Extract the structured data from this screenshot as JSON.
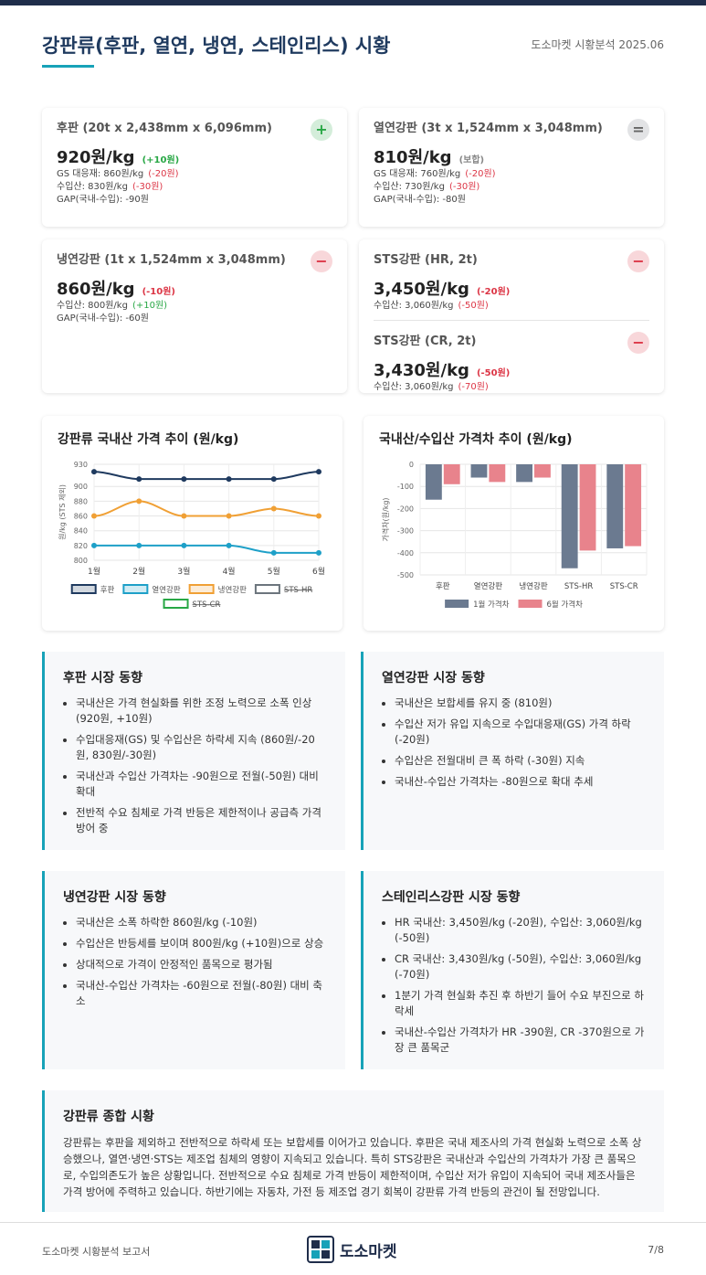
{
  "header": {
    "title": "강판류(후판, 열연, 냉연, 스테인리스) 시황",
    "meta": "도소마켓 시황분석 2025.06"
  },
  "cards": [
    {
      "items": [
        {
          "name": "후판 (20t x 2,438mm x 6,096mm)",
          "direction": "up",
          "price": "920원/kg",
          "change": "(+10원)",
          "details": [
            {
              "text": "GS 대응재: 860원/kg",
              "change": "(-20원)"
            },
            {
              "text": "수입산: 830원/kg",
              "change": "(-30원)"
            },
            {
              "text": "GAP(국내-수입): -90원"
            }
          ]
        }
      ]
    },
    {
      "items": [
        {
          "name": "열연강판 (3t x 1,524mm x 3,048mm)",
          "direction": "flat",
          "price": "810원/kg",
          "change": "(보합)",
          "details": [
            {
              "text": "GS 대응재: 760원/kg",
              "change": "(-20원)"
            },
            {
              "text": "수입산: 730원/kg",
              "change": "(-30원)"
            },
            {
              "text": "GAP(국내-수입): -80원"
            }
          ]
        }
      ]
    },
    {
      "items": [
        {
          "name": "냉연강판 (1t x 1,524mm x 3,048mm)",
          "direction": "down",
          "price": "860원/kg",
          "change": "(-10원)",
          "details": [
            {
              "text": "수입산: 800원/kg",
              "change": "(+10원)"
            },
            {
              "text": "GAP(국내-수입): -60원"
            }
          ]
        }
      ]
    },
    {
      "items": [
        {
          "name": "STS강판 (HR, 2t)",
          "direction": "down",
          "price": "3,450원/kg",
          "change": "(-20원)",
          "details": [
            {
              "text": "수입산: 3,060원/kg",
              "change": "(-50원)"
            }
          ]
        },
        {
          "name": "STS강판 (CR, 2t)",
          "direction": "down",
          "price": "3,430원/kg",
          "change": "(-50원)",
          "details": [
            {
              "text": "수입산: 3,060원/kg",
              "change": "(-70원)"
            }
          ]
        }
      ]
    }
  ],
  "chart_data": [
    {
      "type": "line",
      "title": "강판류 국내산 가격 추이 (원/kg)",
      "y_label": "원/kg (STS 제외)",
      "categories": [
        "1월",
        "2월",
        "3월",
        "4월",
        "5월",
        "6월"
      ],
      "series": [
        {
          "name": "후판",
          "color": "#1f3a5f",
          "values": [
            920,
            910,
            910,
            910,
            910,
            920
          ]
        },
        {
          "name": "열연강판",
          "color": "#1ea0c8",
          "values": [
            820,
            820,
            820,
            820,
            810,
            810
          ]
        },
        {
          "name": "냉연강판",
          "color": "#f0a035",
          "values": [
            860,
            880,
            860,
            860,
            870,
            860
          ]
        },
        {
          "name": "STS-HR",
          "color": "#6c757d",
          "hidden": true,
          "values": [
            null,
            null,
            null,
            null,
            null,
            null
          ]
        },
        {
          "name": "STS-CR",
          "color": "#28a745",
          "hidden": true,
          "values": [
            null,
            null,
            null,
            null,
            null,
            null
          ]
        }
      ],
      "ylim": [
        800,
        930
      ],
      "yticks": [
        800,
        820,
        840,
        860,
        880,
        900,
        930
      ],
      "grid": true
    },
    {
      "type": "bar",
      "title": "국내산/수입산 가격차 추이 (원/kg)",
      "y_label": "가격차(원/kg)",
      "categories": [
        "후판",
        "열연강판",
        "냉연강판",
        "STS-HR",
        "STS-CR"
      ],
      "series": [
        {
          "name": "1월 가격차",
          "color": "#6b7a90",
          "values": [
            -160,
            -60,
            -80,
            -470,
            -380
          ]
        },
        {
          "name": "6월 가격차",
          "color": "#e8838c",
          "values": [
            -90,
            -80,
            -60,
            -390,
            -370
          ]
        }
      ],
      "ylim": [
        -500,
        0
      ],
      "yticks": [
        0,
        -100,
        -200,
        -300,
        -400,
        -500
      ],
      "grid": true
    }
  ],
  "trends": [
    {
      "title": "후판 시장 동향",
      "bullets": [
        "국내산은 가격 현실화를 위한 조정 노력으로 소폭 인상 (920원, +10원)",
        "수입대응재(GS) 및 수입산은 하락세 지속 (860원/-20원, 830원/-30원)",
        "국내산과 수입산 가격차는 -90원으로 전월(-50원) 대비 확대",
        "전반적 수요 침체로 가격 반등은 제한적이나 공급측 가격 방어 중"
      ]
    },
    {
      "title": "열연강판 시장 동향",
      "bullets": [
        "국내산은 보합세를 유지 중 (810원)",
        "수입산 저가 유입 지속으로 수입대응재(GS) 가격 하락 (-20원)",
        "수입산은 전월대비 큰 폭 하락 (-30원) 지속",
        "국내산-수입산 가격차는 -80원으로 확대 추세"
      ]
    },
    {
      "title": "냉연강판 시장 동향",
      "bullets": [
        "국내산은 소폭 하락한 860원/kg (-10원)",
        "수입산은 반등세를 보이며 800원/kg (+10원)으로 상승",
        "상대적으로 가격이 안정적인 품목으로 평가됨",
        "국내산-수입산 가격차는 -60원으로 전월(-80원) 대비 축소"
      ]
    },
    {
      "title": "스테인리스강판 시장 동향",
      "bullets": [
        "HR 국내산: 3,450원/kg (-20원), 수입산: 3,060원/kg (-50원)",
        "CR 국내산: 3,430원/kg (-50원), 수입산: 3,060원/kg (-70원)",
        "1분기 가격 현실화 추진 후 하반기 들어 수요 부진으로 하락세",
        "국내산-수입산 가격차가 HR -390원, CR -370원으로 가장 큰 품목군"
      ]
    }
  ],
  "summary": {
    "title": "강판류 종합 시황",
    "text": "강판류는 후판을 제외하고 전반적으로 하락세 또는 보합세를 이어가고 있습니다. 후판은 국내 제조사의 가격 현실화 노력으로 소폭 상승했으나, 열연·냉연·STS는 제조업 침체의 영향이 지속되고 있습니다. 특히 STS강판은 국내산과 수입산의 가격차가 가장 큰 품목으로, 수입의존도가 높은 상황입니다. 전반적으로 수요 침체로 가격 반등이 제한적이며, 수입산 저가 유입이 지속되어 국내 제조사들은 가격 방어에 주력하고 있습니다. 하반기에는 자동차, 가전 등 제조업 경기 회복이 강판류 가격 반등의 관건이 될 전망입니다."
  },
  "footer": {
    "left": "도소마켓 시황분석 보고서",
    "brand": "도소마켓",
    "page": "7/8"
  }
}
